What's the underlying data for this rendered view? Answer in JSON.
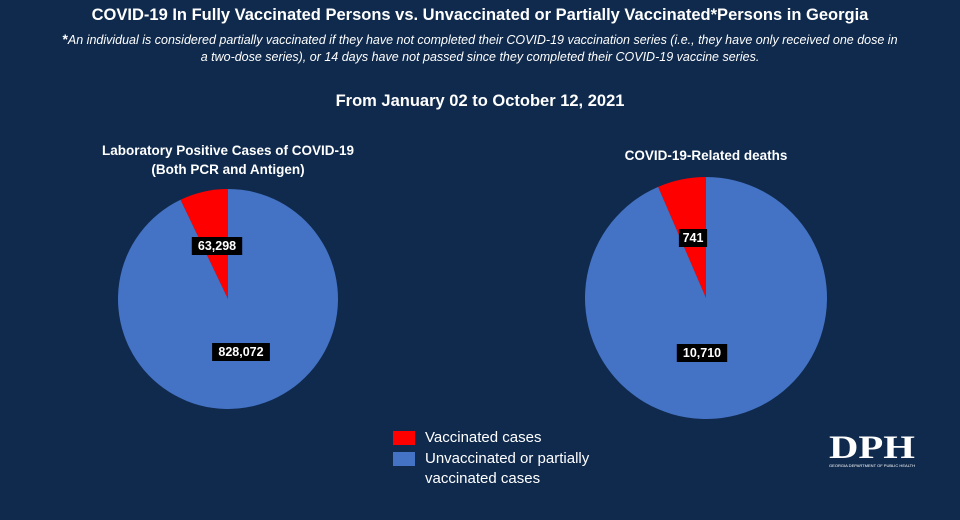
{
  "title": "COVID-19 In Fully Vaccinated Persons vs. Unvaccinated or Partially Vaccinated*Persons in Georgia",
  "footnote": {
    "marker": "*",
    "text": "An individual is considered partially vaccinated if they have not completed their COVID-19 vaccination series (i.e., they have only received one dose in a two-dose series), or 14 days have not passed since they completed their COVID-19 vaccine series."
  },
  "subtitle": "From January 02 to October 12, 2021",
  "legend": [
    {
      "label": "Vaccinated cases",
      "color": "#ff0000"
    },
    {
      "label": "Unvaccinated or partially vaccinated cases",
      "color": "#4472c4"
    }
  ],
  "logo": {
    "text": "DPH",
    "subtext": "GEORGIA DEPARTMENT OF PUBLIC HEALTH"
  },
  "chart_data": [
    {
      "type": "pie",
      "title": "Laboratory Positive Cases of COVID-19",
      "subtitle": "(Both PCR and Antigen)",
      "categories": [
        "Vaccinated cases",
        "Unvaccinated or partially vaccinated cases"
      ],
      "values": [
        63298,
        828072
      ],
      "labels": [
        "63,298",
        "828,072"
      ],
      "colors": [
        "#ff0000",
        "#4472c4"
      ]
    },
    {
      "type": "pie",
      "title": "COVID-19-Related deaths",
      "subtitle": "",
      "categories": [
        "Vaccinated cases",
        "Unvaccinated or partially vaccinated cases"
      ],
      "values": [
        741,
        10710
      ],
      "labels": [
        "741",
        "10,710"
      ],
      "colors": [
        "#ff0000",
        "#4472c4"
      ]
    }
  ]
}
